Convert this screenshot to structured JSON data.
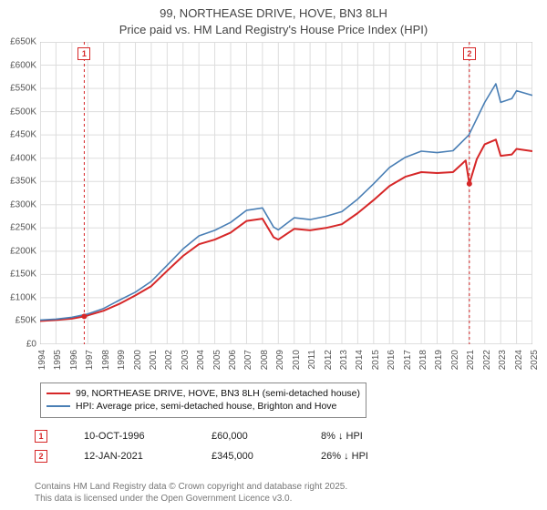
{
  "title_line1": "99, NORTHEASE DRIVE, HOVE, BN3 8LH",
  "title_line2": "Price paid vs. HM Land Registry's House Price Index (HPI)",
  "chart": {
    "type": "line",
    "background_color": "#ffffff",
    "gridline_color": "#dddddd",
    "axis_color": "#bcbcbc",
    "x_start": 1994,
    "x_end": 2025,
    "x_tick_step": 1,
    "x_ticks": [
      "1994",
      "1995",
      "1996",
      "1997",
      "1998",
      "1999",
      "2000",
      "2001",
      "2002",
      "2003",
      "2004",
      "2005",
      "2006",
      "2007",
      "2008",
      "2009",
      "2010",
      "2011",
      "2012",
      "2013",
      "2014",
      "2015",
      "2016",
      "2017",
      "2018",
      "2019",
      "2020",
      "2021",
      "2022",
      "2023",
      "2024",
      "2025"
    ],
    "y_min": 0,
    "y_max": 650000,
    "y_tick_step": 50000,
    "y_ticks": [
      "£0",
      "£50K",
      "£100K",
      "£150K",
      "£200K",
      "£250K",
      "£300K",
      "£350K",
      "£400K",
      "£450K",
      "£500K",
      "£550K",
      "£600K",
      "£650K"
    ],
    "label_fontsize": 10,
    "series": [
      {
        "name": "price_paid",
        "color": "#d62728",
        "line_width": 2,
        "points": [
          [
            1994,
            50000
          ],
          [
            1995,
            52000
          ],
          [
            1996,
            55000
          ],
          [
            1996.78,
            60000
          ],
          [
            1997,
            62000
          ],
          [
            1998,
            72000
          ],
          [
            1999,
            87000
          ],
          [
            2000,
            105000
          ],
          [
            2001,
            125000
          ],
          [
            2002,
            158000
          ],
          [
            2003,
            190000
          ],
          [
            2004,
            215000
          ],
          [
            2005,
            225000
          ],
          [
            2006,
            240000
          ],
          [
            2007,
            265000
          ],
          [
            2008,
            270000
          ],
          [
            2008.7,
            230000
          ],
          [
            2009,
            225000
          ],
          [
            2010,
            248000
          ],
          [
            2011,
            245000
          ],
          [
            2012,
            250000
          ],
          [
            2013,
            258000
          ],
          [
            2014,
            282000
          ],
          [
            2015,
            310000
          ],
          [
            2016,
            340000
          ],
          [
            2017,
            360000
          ],
          [
            2018,
            370000
          ],
          [
            2019,
            368000
          ],
          [
            2020,
            370000
          ],
          [
            2020.8,
            395000
          ],
          [
            2021.03,
            345000
          ],
          [
            2021.5,
            398000
          ],
          [
            2022,
            430000
          ],
          [
            2022.7,
            440000
          ],
          [
            2023,
            405000
          ],
          [
            2023.7,
            408000
          ],
          [
            2024,
            420000
          ],
          [
            2025,
            415000
          ]
        ]
      },
      {
        "name": "hpi",
        "color": "#4a7fb5",
        "line_width": 1.6,
        "points": [
          [
            1994,
            52000
          ],
          [
            1995,
            54000
          ],
          [
            1996,
            58000
          ],
          [
            1997,
            65000
          ],
          [
            1998,
            77000
          ],
          [
            1999,
            95000
          ],
          [
            2000,
            112000
          ],
          [
            2001,
            135000
          ],
          [
            2002,
            170000
          ],
          [
            2003,
            205000
          ],
          [
            2004,
            233000
          ],
          [
            2005,
            245000
          ],
          [
            2006,
            262000
          ],
          [
            2007,
            288000
          ],
          [
            2008,
            293000
          ],
          [
            2008.7,
            252000
          ],
          [
            2009,
            246000
          ],
          [
            2010,
            272000
          ],
          [
            2011,
            268000
          ],
          [
            2012,
            275000
          ],
          [
            2013,
            285000
          ],
          [
            2014,
            312000
          ],
          [
            2015,
            345000
          ],
          [
            2016,
            380000
          ],
          [
            2017,
            402000
          ],
          [
            2018,
            415000
          ],
          [
            2019,
            412000
          ],
          [
            2020,
            416000
          ],
          [
            2021,
            450000
          ],
          [
            2022,
            520000
          ],
          [
            2022.7,
            560000
          ],
          [
            2023,
            520000
          ],
          [
            2023.7,
            528000
          ],
          [
            2024,
            545000
          ],
          [
            2025,
            535000
          ]
        ]
      }
    ],
    "markers": [
      {
        "label": "1",
        "x": 1996.78,
        "border_color": "#d62728",
        "text_color": "#d62728",
        "dash_line": true
      },
      {
        "label": "2",
        "x": 2021.03,
        "border_color": "#d62728",
        "text_color": "#d62728",
        "dash_line": true
      }
    ]
  },
  "legend": {
    "rows": [
      {
        "color": "#d62728",
        "width": 2,
        "text": "99, NORTHEASE DRIVE, HOVE, BN3 8LH (semi-detached house)"
      },
      {
        "color": "#4a7fb5",
        "width": 1.6,
        "text": "HPI: Average price, semi-detached house, Brighton and Hove"
      }
    ]
  },
  "events": [
    {
      "marker": "1",
      "color": "#d62728",
      "date": "10-OCT-1996",
      "price": "£60,000",
      "delta": "8% ↓ HPI"
    },
    {
      "marker": "2",
      "color": "#d62728",
      "date": "12-JAN-2021",
      "price": "£345,000",
      "delta": "26% ↓ HPI"
    }
  ],
  "footnote_line1": "Contains HM Land Registry data © Crown copyright and database right 2025.",
  "footnote_line2": "This data is licensed under the Open Government Licence v3.0."
}
